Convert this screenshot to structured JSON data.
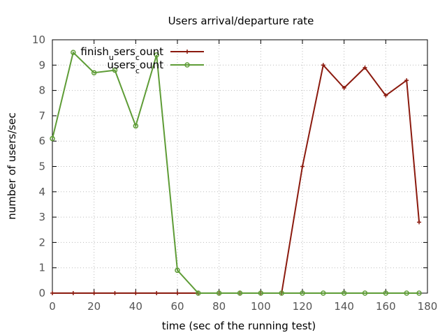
{
  "chart_data": {
    "type": "line",
    "title": "Users arrival/departure rate",
    "xlabel": "time (sec of the running test)",
    "ylabel": "number of users/sec",
    "xlim": [
      0,
      180
    ],
    "ylim": [
      0,
      10
    ],
    "x_ticks": [
      "0",
      "20",
      "40",
      "60",
      "80",
      "100",
      "120",
      "140",
      "160",
      "180"
    ],
    "y_ticks": [
      "0",
      "1",
      "2",
      "3",
      "4",
      "5",
      "6",
      "7",
      "8",
      "9",
      "10"
    ],
    "grid": true,
    "legend_position": "top-left",
    "series": [
      {
        "name_parts": [
          [
            "finish",
            ""
          ],
          [
            "u",
            "sub"
          ],
          [
            "sers",
            ""
          ],
          [
            "c",
            "sub"
          ],
          [
            "ount",
            ""
          ]
        ],
        "color": "#8b1a0e",
        "marker": "plus",
        "x": [
          0,
          10,
          20,
          30,
          40,
          50,
          60,
          70,
          80,
          90,
          100,
          110,
          120,
          130,
          140,
          150,
          160,
          170,
          176
        ],
        "y": [
          0,
          0,
          0,
          0,
          0,
          0,
          0,
          0,
          0,
          0,
          0,
          0,
          5.0,
          9.0,
          8.1,
          8.9,
          7.8,
          8.4,
          2.8
        ]
      },
      {
        "name_parts": [
          [
            "users",
            ""
          ],
          [
            "c",
            "sub"
          ],
          [
            "ount",
            ""
          ]
        ],
        "color": "#5e9c36",
        "marker": "circle",
        "x": [
          0,
          10,
          20,
          30,
          40,
          50,
          60,
          70,
          80,
          90,
          100,
          110,
          120,
          130,
          140,
          150,
          160,
          170,
          176
        ],
        "y": [
          6.1,
          9.5,
          8.7,
          8.8,
          6.6,
          9.4,
          0.9,
          0,
          0,
          0,
          0,
          0,
          0,
          0,
          0,
          0,
          0,
          0,
          0
        ]
      }
    ]
  }
}
